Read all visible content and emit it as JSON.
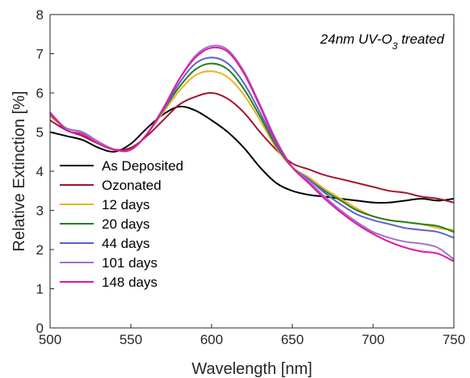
{
  "chart_data": {
    "type": "line",
    "title": "",
    "xlabel": "Wavelength [nm]",
    "ylabel": "Relative Extinction [%]",
    "xlim": [
      500,
      750
    ],
    "ylim": [
      0,
      8
    ],
    "xticks": [
      "500",
      "550",
      "600",
      "650",
      "700",
      "750"
    ],
    "yticks": [
      "0",
      "1",
      "2",
      "3",
      "4",
      "5",
      "6",
      "7",
      "8"
    ],
    "annotation": {
      "main": "24nm UV-O",
      "sub": "3",
      "tail": " treated"
    },
    "legend_position": "left-middle",
    "grid": false,
    "x": [
      500,
      510,
      520,
      530,
      540,
      550,
      560,
      570,
      580,
      590,
      600,
      610,
      620,
      630,
      640,
      650,
      660,
      670,
      680,
      690,
      700,
      710,
      720,
      730,
      740,
      750
    ],
    "series": [
      {
        "name": "As Deposited",
        "color": "#000000",
        "values": [
          5.0,
          4.9,
          4.8,
          4.6,
          4.5,
          4.7,
          5.1,
          5.45,
          5.65,
          5.55,
          5.3,
          5.0,
          4.6,
          4.1,
          3.7,
          3.5,
          3.4,
          3.35,
          3.3,
          3.25,
          3.2,
          3.2,
          3.25,
          3.3,
          3.25,
          3.3
        ]
      },
      {
        "name": "Ozonated",
        "color": "#a2142f",
        "values": [
          5.3,
          5.05,
          4.9,
          4.7,
          4.55,
          4.6,
          4.9,
          5.3,
          5.7,
          5.9,
          6.0,
          5.85,
          5.5,
          5.0,
          4.55,
          4.2,
          4.05,
          3.9,
          3.8,
          3.7,
          3.6,
          3.5,
          3.45,
          3.35,
          3.3,
          3.2
        ]
      },
      {
        "name": "12 days",
        "color": "#edb120",
        "values": [
          5.4,
          5.1,
          5.0,
          4.75,
          4.55,
          4.55,
          4.95,
          5.5,
          6.05,
          6.45,
          6.55,
          6.4,
          5.95,
          5.3,
          4.6,
          4.1,
          3.85,
          3.55,
          3.3,
          3.05,
          2.85,
          2.75,
          2.7,
          2.65,
          2.55,
          2.5
        ]
      },
      {
        "name": "20 days",
        "color": "#208020",
        "values": [
          5.45,
          5.1,
          5.0,
          4.75,
          4.55,
          4.55,
          4.95,
          5.55,
          6.15,
          6.6,
          6.75,
          6.6,
          6.1,
          5.4,
          4.65,
          4.1,
          3.8,
          3.5,
          3.25,
          3.0,
          2.85,
          2.75,
          2.7,
          2.65,
          2.6,
          2.45
        ]
      },
      {
        "name": "44 days",
        "color": "#6060d0",
        "values": [
          5.45,
          5.1,
          5.0,
          4.75,
          4.55,
          4.55,
          4.95,
          5.55,
          6.25,
          6.75,
          6.9,
          6.75,
          6.25,
          5.5,
          4.7,
          4.1,
          3.8,
          3.45,
          3.15,
          2.9,
          2.75,
          2.65,
          2.55,
          2.5,
          2.45,
          2.3
        ]
      },
      {
        "name": "101 days",
        "color": "#a070d0",
        "values": [
          5.5,
          5.1,
          5.0,
          4.75,
          4.55,
          4.55,
          4.95,
          5.6,
          6.35,
          6.95,
          7.2,
          7.1,
          6.55,
          5.7,
          4.8,
          4.1,
          3.75,
          3.35,
          3.0,
          2.7,
          2.45,
          2.3,
          2.2,
          2.15,
          2.05,
          1.75
        ]
      },
      {
        "name": "148 days",
        "color": "#e0199d",
        "values": [
          5.5,
          5.05,
          4.95,
          4.7,
          4.55,
          4.55,
          4.95,
          5.6,
          6.35,
          6.9,
          7.15,
          7.05,
          6.5,
          5.65,
          4.75,
          4.1,
          3.7,
          3.3,
          2.95,
          2.65,
          2.4,
          2.2,
          2.05,
          1.95,
          1.9,
          1.7
        ]
      }
    ]
  }
}
